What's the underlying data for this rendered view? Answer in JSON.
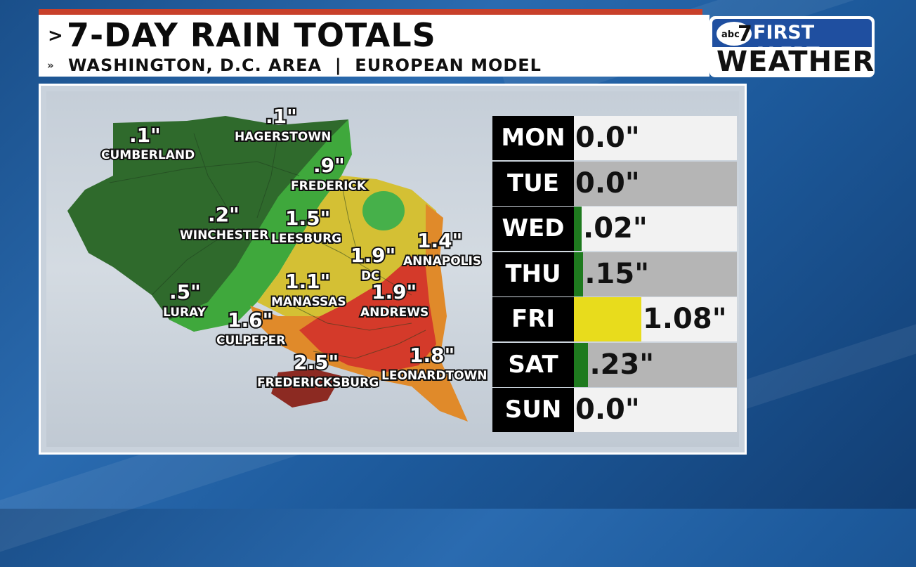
{
  "header": {
    "title": "7-DAY RAIN TOTALS",
    "subtitle": "WASHINGTON, D.C. AREA  |  EUROPEAN MODEL"
  },
  "brand": {
    "network": "abc",
    "channel": "7",
    "line1": "FIRST ALERT",
    "line2": "WEATHER"
  },
  "map": {
    "labels": [
      {
        "value": ".1\"",
        "city": "CUMBERLAND"
      },
      {
        "value": ".1\"",
        "city": "HAGERSTOWN"
      },
      {
        "value": ".9\"",
        "city": "FREDERICK"
      },
      {
        "value": ".2\"",
        "city": "WINCHESTER"
      },
      {
        "value": "1.5\"",
        "city": "LEESBURG"
      },
      {
        "value": "1.9\"",
        "city": "DC"
      },
      {
        "value": "1.4\"",
        "city": "ANNAPOLIS"
      },
      {
        "value": ".5\"",
        "city": "LURAY"
      },
      {
        "value": "1.1\"",
        "city": "MANASSAS"
      },
      {
        "value": "1.9\"",
        "city": "ANDREWS"
      },
      {
        "value": "1.6\"",
        "city": "CULPEPER"
      },
      {
        "value": "2.5\"",
        "city": "FREDERICKSBURG"
      },
      {
        "value": "1.8\"",
        "city": "LEONARDTOWN"
      }
    ]
  },
  "daily": [
    {
      "day": "MON",
      "amount": "0.0\"",
      "inches": 0.0,
      "bar_color": "#1e7a1e"
    },
    {
      "day": "TUE",
      "amount": "0.0\"",
      "inches": 0.0,
      "bar_color": "#1e7a1e"
    },
    {
      "day": "WED",
      "amount": ".02\"",
      "inches": 0.02,
      "bar_color": "#1e7a1e"
    },
    {
      "day": "THU",
      "amount": ".15\"",
      "inches": 0.15,
      "bar_color": "#1e7a1e"
    },
    {
      "day": "FRI",
      "amount": "1.08\"",
      "inches": 1.08,
      "bar_color": "#e8dc1c"
    },
    {
      "day": "SAT",
      "amount": ".23\"",
      "inches": 0.23,
      "bar_color": "#1e7a1e"
    },
    {
      "day": "SUN",
      "amount": "0.0\"",
      "inches": 0.0,
      "bar_color": "#1e7a1e"
    }
  ]
}
